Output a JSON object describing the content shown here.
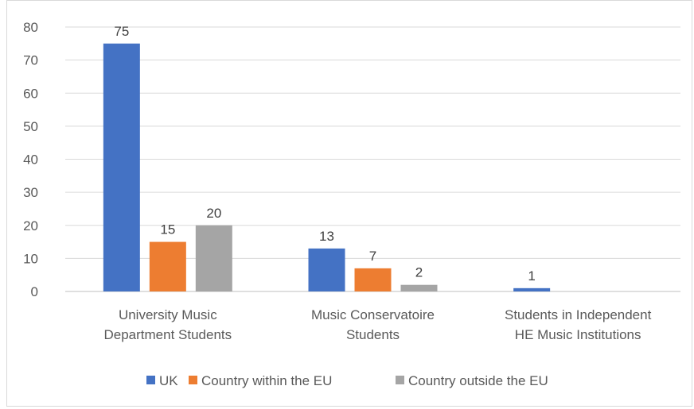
{
  "chart_data": {
    "type": "bar",
    "categories": [
      [
        "University Music",
        "Department Students"
      ],
      [
        "Music Conservatoire",
        "Students"
      ],
      [
        "Students in Independent",
        "HE Music Institutions"
      ]
    ],
    "series": [
      {
        "name": "UK",
        "color": "#4472c4",
        "values": [
          75,
          13,
          1
        ]
      },
      {
        "name": "Country within the EU",
        "color": "#ed7d31",
        "values": [
          15,
          7,
          null
        ]
      },
      {
        "name": "Country outside the EU",
        "color": "#a5a5a5",
        "values": [
          20,
          2,
          null
        ]
      }
    ],
    "y_ticks": [
      0,
      10,
      20,
      30,
      40,
      50,
      60,
      70,
      80
    ],
    "ylim": [
      0,
      80
    ],
    "grid": true,
    "legend_position": "bottom",
    "data_labels": true
  }
}
